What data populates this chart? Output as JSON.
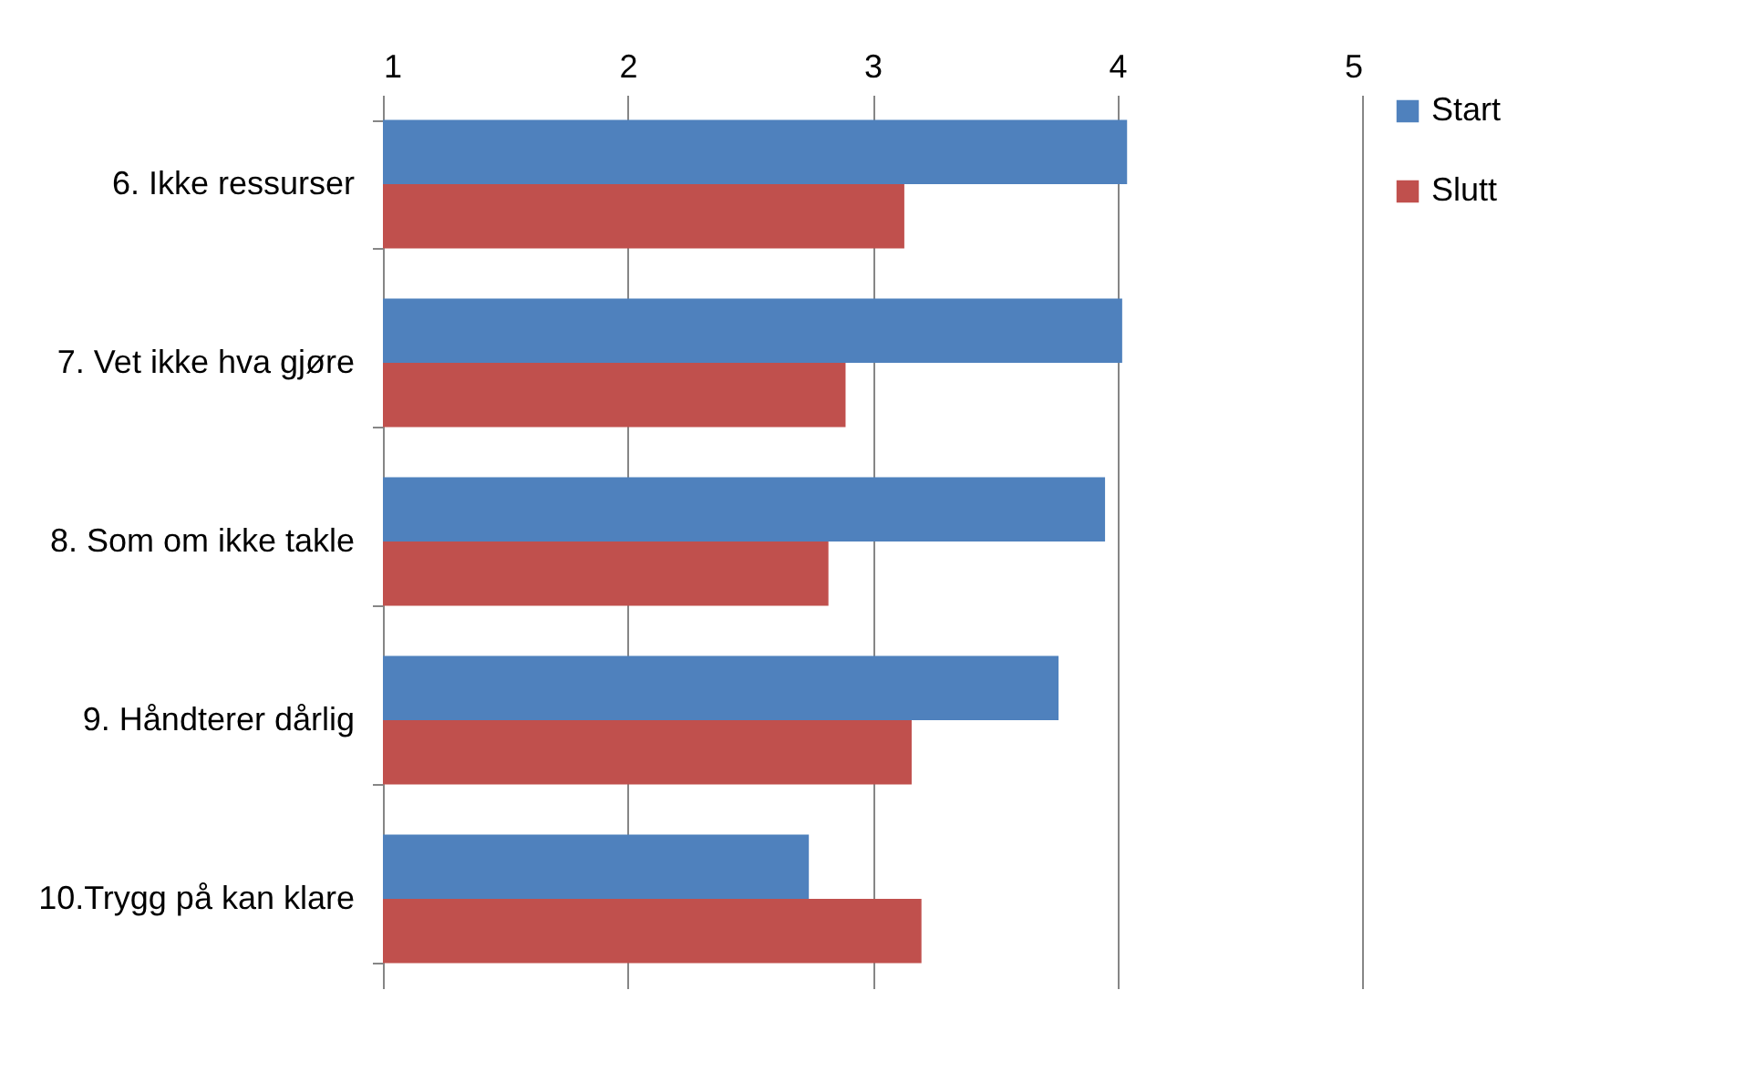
{
  "chart_data": {
    "type": "bar",
    "orientation": "horizontal",
    "categories": [
      "6. Ikke ressurser",
      "7. Vet ikke hva gjøre",
      "8. Som om ikke takle",
      "9. Håndterer dårlig",
      "10.Trygg på kan klare"
    ],
    "series": [
      {
        "name": "Start",
        "color": "#4f81bd",
        "values": [
          4.04,
          4.02,
          3.95,
          3.76,
          2.74
        ]
      },
      {
        "name": "Slutt",
        "color": "#c0504d",
        "values": [
          3.13,
          2.89,
          2.82,
          3.16,
          3.2
        ]
      }
    ],
    "xlim": [
      1,
      5
    ],
    "xticks": [
      1,
      2,
      3,
      4,
      5
    ],
    "grid": "x",
    "legend": "right"
  }
}
